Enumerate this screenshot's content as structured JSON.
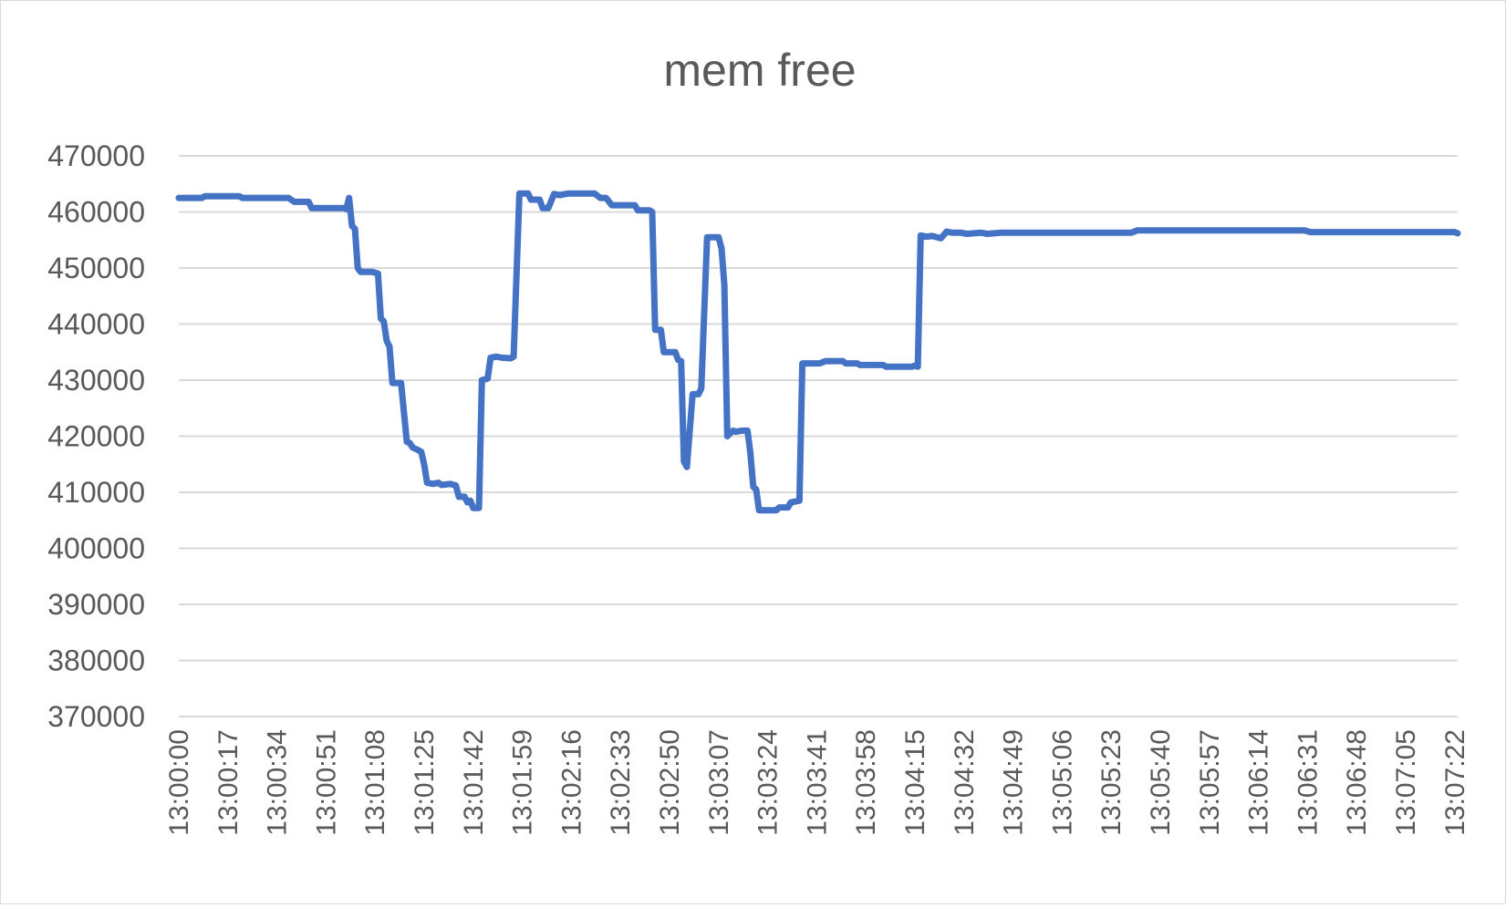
{
  "chart_data": {
    "type": "line",
    "title": "mem free",
    "xlabel": "",
    "ylabel": "",
    "ylim": [
      370000,
      470000
    ],
    "yticks": [
      470000,
      460000,
      450000,
      440000,
      430000,
      420000,
      410000,
      400000,
      390000,
      380000,
      370000
    ],
    "xlim": [
      "13:00:00",
      "13:07:23"
    ],
    "xticks": [
      "13:00:00",
      "13:00:17",
      "13:00:34",
      "13:00:51",
      "13:01:08",
      "13:01:25",
      "13:01:42",
      "13:01:59",
      "13:02:16",
      "13:02:33",
      "13:02:50",
      "13:03:07",
      "13:03:24",
      "13:03:41",
      "13:03:58",
      "13:04:15",
      "13:04:32",
      "13:04:49",
      "13:05:06",
      "13:05:23",
      "13:05:40",
      "13:05:57",
      "13:06:14",
      "13:06:31",
      "13:06:48",
      "13:07:05",
      "13:07:22"
    ],
    "grid": true,
    "legend": "none",
    "series": [
      {
        "color": "#4472c4",
        "points": [
          [
            "13:00:00",
            462500
          ],
          [
            "13:00:08",
            462500
          ],
          [
            "13:00:09",
            462800
          ],
          [
            "13:00:21",
            462800
          ],
          [
            "13:00:22",
            462500
          ],
          [
            "13:00:38",
            462500
          ],
          [
            "13:00:40",
            461800
          ],
          [
            "13:00:45",
            461800
          ],
          [
            "13:00:46",
            460700
          ],
          [
            "13:00:57",
            460700
          ],
          [
            "13:00:58",
            460500
          ],
          [
            "13:00:59",
            462500
          ],
          [
            "13:01:00",
            457500
          ],
          [
            "13:01:01",
            457000
          ],
          [
            "13:01:02",
            450000
          ],
          [
            "13:01:03",
            449300
          ],
          [
            "13:01:07",
            449300
          ],
          [
            "13:01:09",
            449000
          ],
          [
            "13:01:10",
            441000
          ],
          [
            "13:01:11",
            440500
          ],
          [
            "13:01:12",
            437000
          ],
          [
            "13:01:13",
            436000
          ],
          [
            "13:01:14",
            429500
          ],
          [
            "13:01:17",
            429500
          ],
          [
            "13:01:19",
            419000
          ],
          [
            "13:01:20",
            418800
          ],
          [
            "13:01:21",
            418000
          ],
          [
            "13:01:23",
            417500
          ],
          [
            "13:01:24",
            417200
          ],
          [
            "13:01:25",
            415000
          ],
          [
            "13:01:26",
            411700
          ],
          [
            "13:01:28",
            411500
          ],
          [
            "13:01:30",
            411700
          ],
          [
            "13:01:31",
            411300
          ],
          [
            "13:01:34",
            411500
          ],
          [
            "13:01:36",
            411200
          ],
          [
            "13:01:37",
            409200
          ],
          [
            "13:01:39",
            409200
          ],
          [
            "13:01:40",
            408200
          ],
          [
            "13:01:41",
            408500
          ],
          [
            "13:01:42",
            407200
          ],
          [
            "13:01:44",
            407200
          ],
          [
            "13:01:45",
            430000
          ],
          [
            "13:01:47",
            430300
          ],
          [
            "13:01:48",
            434000
          ],
          [
            "13:01:50",
            434200
          ],
          [
            "13:01:52",
            434000
          ],
          [
            "13:01:55",
            433900
          ],
          [
            "13:01:56",
            434200
          ],
          [
            "13:01:58",
            463300
          ],
          [
            "13:02:01",
            463300
          ],
          [
            "13:02:02",
            462200
          ],
          [
            "13:02:05",
            462200
          ],
          [
            "13:02:06",
            460700
          ],
          [
            "13:02:08",
            460700
          ],
          [
            "13:02:10",
            463200
          ],
          [
            "13:02:12",
            463000
          ],
          [
            "13:02:15",
            463300
          ],
          [
            "13:02:24",
            463300
          ],
          [
            "13:02:26",
            462500
          ],
          [
            "13:02:28",
            462500
          ],
          [
            "13:02:30",
            461200
          ],
          [
            "13:02:38",
            461200
          ],
          [
            "13:02:39",
            460300
          ],
          [
            "13:02:43",
            460300
          ],
          [
            "13:02:44",
            460000
          ],
          [
            "13:02:45",
            439000
          ],
          [
            "13:02:47",
            439000
          ],
          [
            "13:02:48",
            435000
          ],
          [
            "13:02:52",
            435000
          ],
          [
            "13:02:53",
            433600
          ],
          [
            "13:02:54",
            433400
          ],
          [
            "13:02:55",
            415500
          ],
          [
            "13:02:56",
            414500
          ],
          [
            "13:02:58",
            427500
          ],
          [
            "13:03:00",
            427500
          ],
          [
            "13:03:01",
            428500
          ],
          [
            "13:03:03",
            455500
          ],
          [
            "13:03:07",
            455500
          ],
          [
            "13:03:08",
            453500
          ],
          [
            "13:03:09",
            447000
          ],
          [
            "13:03:10",
            420000
          ],
          [
            "13:03:12",
            421000
          ],
          [
            "13:03:13",
            420800
          ],
          [
            "13:03:15",
            421000
          ],
          [
            "13:03:17",
            421000
          ],
          [
            "13:03:18",
            417000
          ],
          [
            "13:03:19",
            411000
          ],
          [
            "13:03:20",
            410500
          ],
          [
            "13:03:21",
            406800
          ],
          [
            "13:03:27",
            406800
          ],
          [
            "13:03:28",
            407300
          ],
          [
            "13:03:31",
            407300
          ],
          [
            "13:03:32",
            408200
          ],
          [
            "13:03:35",
            408500
          ],
          [
            "13:03:36",
            433000
          ],
          [
            "13:03:42",
            433000
          ],
          [
            "13:03:44",
            433400
          ],
          [
            "13:03:50",
            433400
          ],
          [
            "13:03:51",
            433000
          ],
          [
            "13:03:55",
            433000
          ],
          [
            "13:03:56",
            432700
          ],
          [
            "13:04:04",
            432700
          ],
          [
            "13:04:05",
            432400
          ],
          [
            "13:04:14",
            432400
          ],
          [
            "13:04:15",
            432600
          ],
          [
            "13:04:16",
            432400
          ],
          [
            "13:04:17",
            455800
          ],
          [
            "13:04:19",
            455600
          ],
          [
            "13:04:21",
            455700
          ],
          [
            "13:04:24",
            455300
          ],
          [
            "13:04:26",
            456500
          ],
          [
            "13:04:28",
            456300
          ],
          [
            "13:04:31",
            456300
          ],
          [
            "13:04:33",
            456100
          ],
          [
            "13:04:38",
            456300
          ],
          [
            "13:04:40",
            456100
          ],
          [
            "13:04:45",
            456300
          ],
          [
            "13:05:30",
            456300
          ],
          [
            "13:05:32",
            456700
          ],
          [
            "13:06:30",
            456700
          ],
          [
            "13:06:32",
            456400
          ],
          [
            "13:07:22",
            456400
          ],
          [
            "13:07:23",
            456200
          ]
        ]
      }
    ]
  }
}
